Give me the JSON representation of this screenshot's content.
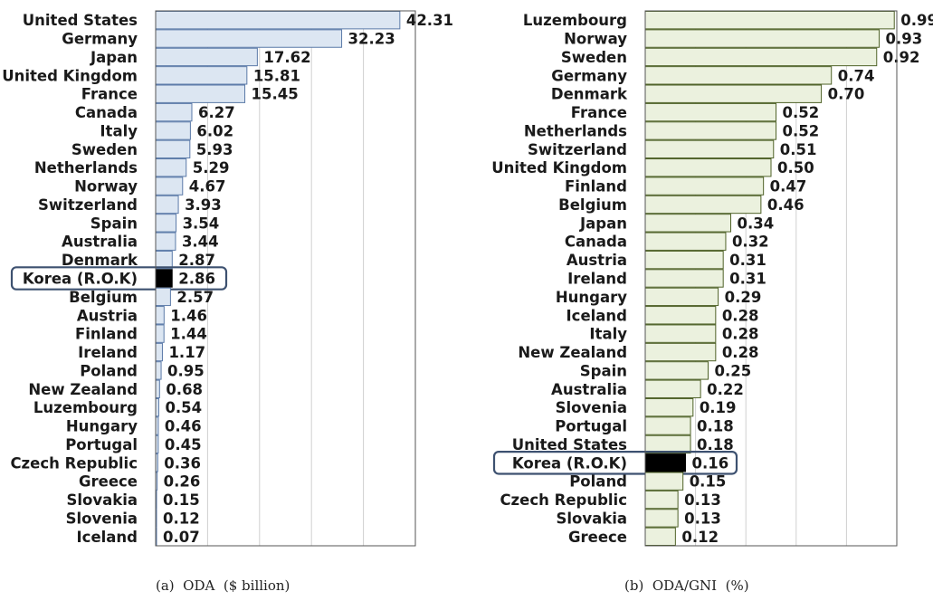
{
  "chart_data": [
    {
      "type": "bar",
      "orientation": "horizontal",
      "caption": "(a)  ODA  ($ billion)",
      "xlim": [
        0,
        45
      ],
      "grid": true,
      "bar_color": "#dce6f2",
      "bar_edge": "#5b7aa8",
      "highlight_category": "Korea (R.O.K)",
      "highlight_color": "#000000",
      "value_labels": [
        "42.31",
        "32.23",
        "17.62",
        "15.81",
        "15.45",
        "6.27",
        "6.02",
        "5.93",
        "5.29",
        "4.67",
        "3.93",
        "3.54",
        "3.44",
        "2.87",
        "2.86",
        "2.57",
        "1.46",
        "1.44",
        "1.17",
        "0.95",
        "0.68",
        "0.54",
        "0.46",
        "0.45",
        "0.36",
        "0.26",
        "0.15",
        "0.12",
        "0.07"
      ],
      "categories": [
        "United States",
        "Germany",
        "Japan",
        "United Kingdom",
        "France",
        "Canada",
        "Italy",
        "Sweden",
        "Netherlands",
        "Norway",
        "Switzerland",
        "Spain",
        "Australia",
        "Denmark",
        "Korea (R.O.K)",
        "Belgium",
        "Austria",
        "Finland",
        "Ireland",
        "Poland",
        "New Zealand",
        "Luzembourg",
        "Hungary",
        "Portugal",
        "Czech Republic",
        "Greece",
        "Slovakia",
        "Slovenia",
        "Iceland"
      ],
      "values": [
        42.31,
        32.23,
        17.62,
        15.81,
        15.45,
        6.27,
        6.02,
        5.93,
        5.29,
        4.67,
        3.93,
        3.54,
        3.44,
        2.87,
        2.86,
        2.57,
        1.46,
        1.44,
        1.17,
        0.95,
        0.68,
        0.54,
        0.46,
        0.45,
        0.36,
        0.26,
        0.15,
        0.12,
        0.07
      ]
    },
    {
      "type": "bar",
      "orientation": "horizontal",
      "caption": "(b)  ODA/GNI  (%)",
      "xlim": [
        0,
        1.0
      ],
      "grid": true,
      "bar_color": "#ebf1de",
      "bar_edge": "#4f6228",
      "highlight_category": "Korea (R.O.K)",
      "highlight_color": "#000000",
      "value_labels": [
        "0.99",
        "0.93",
        "0.92",
        "0.74",
        "0.70",
        "0.52",
        "0.52",
        "0.51",
        "0.50",
        "0.47",
        "0.46",
        "0.34",
        "0.32",
        "0.31",
        "0.31",
        "0.29",
        "0.28",
        "0.28",
        "0.28",
        "0.25",
        "0.22",
        "0.19",
        "0.18",
        "0.18",
        "0.16",
        "0.15",
        "0.13",
        "0.13",
        "0.12"
      ],
      "categories": [
        "Luzembourg",
        "Norway",
        "Sweden",
        "Germany",
        "Denmark",
        "France",
        "Netherlands",
        "Switzerland",
        "United Kingdom",
        "Finland",
        "Belgium",
        "Japan",
        "Canada",
        "Austria",
        "Ireland",
        "Hungary",
        "Iceland",
        "Italy",
        "New Zealand",
        "Spain",
        "Australia",
        "Slovenia",
        "Portugal",
        "United States",
        "Korea (R.O.K)",
        "Poland",
        "Czech Republic",
        "Slovakia",
        "Greece"
      ],
      "values": [
        0.99,
        0.93,
        0.92,
        0.74,
        0.7,
        0.52,
        0.52,
        0.51,
        0.5,
        0.47,
        0.46,
        0.34,
        0.32,
        0.31,
        0.31,
        0.29,
        0.28,
        0.28,
        0.28,
        0.25,
        0.22,
        0.19,
        0.18,
        0.18,
        0.16,
        0.15,
        0.13,
        0.13,
        0.12
      ]
    }
  ]
}
